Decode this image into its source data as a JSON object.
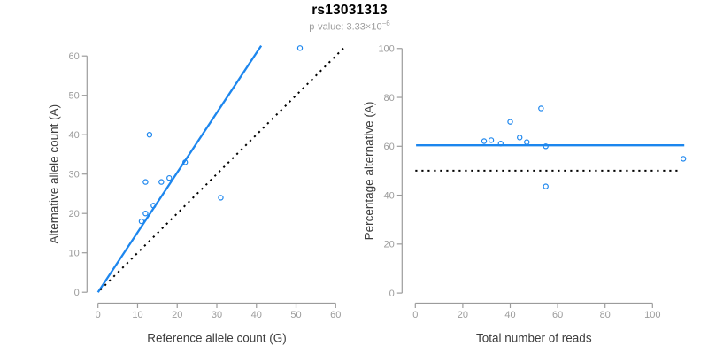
{
  "figure": {
    "title": "rs13031313",
    "subtitle": {
      "prefix": "p-value: 3.33×",
      "base": "10",
      "exponent": "−6"
    }
  },
  "colors": {
    "point_blue": "#1C86EE",
    "line_blue": "#1C86EE",
    "dotted_black": "#000000",
    "axis_gray": "#9C9C9C",
    "tick_label_gray": "#9C9C9C",
    "axis_title_gray": "#3D3D3D",
    "title_black": "#000000",
    "subtitle_gray": "#9C9C9C",
    "background": "#FFFFFF"
  },
  "chart_data": {
    "figure_title": "rs13031313",
    "figure_subtitle": "p-value: 3.33×10^-6",
    "plots": [
      {
        "name": "allele-counts",
        "type": "scatter",
        "xlabel": "Reference allele count (G)",
        "ylabel": "Alternative allele count (A)",
        "xlim": [
          0,
          62.4
        ],
        "ylim": [
          0,
          62.6
        ],
        "xticks": [
          0,
          10,
          20,
          30,
          40,
          50,
          60
        ],
        "yticks": [
          0,
          10,
          20,
          30,
          40,
          50,
          60
        ],
        "grid": false,
        "legend": "none",
        "points": [
          [
            11,
            18
          ],
          [
            12,
            20
          ],
          [
            12,
            28
          ],
          [
            13,
            40
          ],
          [
            14,
            22
          ],
          [
            16,
            28
          ],
          [
            18,
            29
          ],
          [
            22,
            33
          ],
          [
            31,
            24
          ],
          [
            51,
            62
          ]
        ],
        "lines": [
          {
            "name": "fit-line",
            "style": "solid",
            "color_key": "line_blue",
            "x1": 0,
            "y1": 0,
            "x2": 41.2,
            "y2": 62.6
          },
          {
            "name": "identity-line",
            "style": "dotted",
            "color_key": "dotted_black",
            "x1": 0.6,
            "y1": 0.6,
            "x2": 62.3,
            "y2": 62.3
          }
        ]
      },
      {
        "name": "percentage-vs-coverage",
        "type": "scatter",
        "xlabel": "Total number of reads",
        "ylabel": "Percentage alternative (A)",
        "xlim": [
          0,
          113.6
        ],
        "ylim": [
          0,
          100
        ],
        "xticks": [
          0,
          20,
          40,
          60,
          80,
          100
        ],
        "yticks": [
          0,
          20,
          40,
          60,
          80,
          100
        ],
        "grid": false,
        "legend": "none",
        "points": [
          [
            29,
            62.1
          ],
          [
            32,
            62.5
          ],
          [
            36,
            61.1
          ],
          [
            40,
            70.0
          ],
          [
            44,
            63.6
          ],
          [
            47,
            61.7
          ],
          [
            53,
            75.5
          ],
          [
            55,
            60.0
          ],
          [
            55,
            43.6
          ],
          [
            113,
            54.9
          ]
        ],
        "lines": [
          {
            "name": "mean-percentage-line",
            "style": "solid",
            "color_key": "line_blue",
            "x1": 0.3,
            "y1": 60.4,
            "x2": 113.4,
            "y2": 60.4
          },
          {
            "name": "fifty-percent-line",
            "style": "dotted",
            "color_key": "dotted_black",
            "x1": 0,
            "y1": 50,
            "x2": 111.6,
            "y2": 50
          }
        ]
      }
    ]
  }
}
